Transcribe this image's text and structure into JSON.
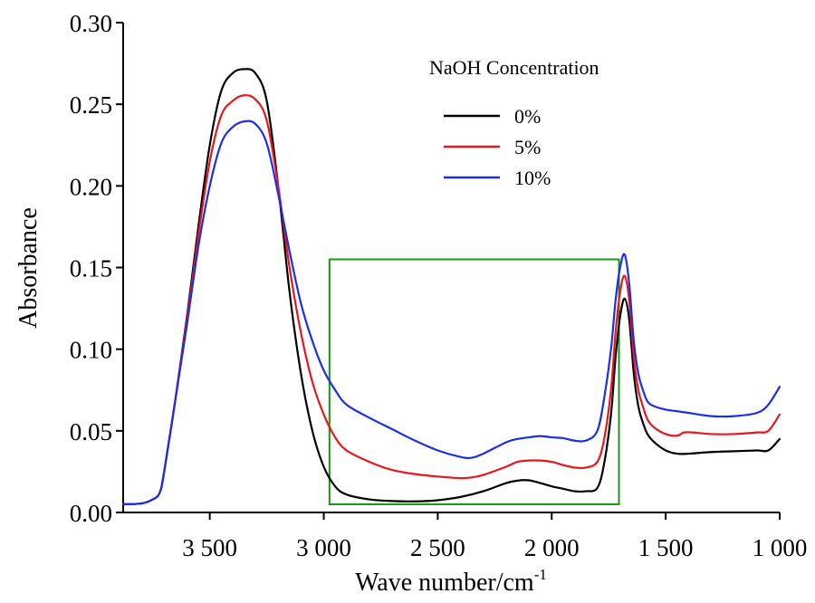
{
  "chart_data": {
    "type": "line",
    "xlabel": "Wave number/cm",
    "xlabel_sup": "-1",
    "ylabel": "Absorbance",
    "xlim": [
      3880,
      1000
    ],
    "ylim": [
      0,
      0.3
    ],
    "x_reversed": true,
    "x_ticks": [
      3500,
      3000,
      2500,
      2000,
      1500,
      1000
    ],
    "x_tick_labels": [
      "3 500",
      "3 000",
      "2 500",
      "2 000",
      "1 500",
      "1 000"
    ],
    "y_ticks": [
      0,
      0.05,
      0.1,
      0.15,
      0.2,
      0.25,
      0.3
    ],
    "y_tick_labels": [
      "0.00",
      "0.05",
      "0.10",
      "0.15",
      "0.20",
      "0.25",
      "0.30"
    ],
    "grid": false,
    "legend": {
      "title": "NaOH Concentration",
      "placement": "top-right"
    },
    "series": [
      {
        "name": "0%",
        "color": "#000000",
        "points": [
          [
            3880,
            0.005
          ],
          [
            3800,
            0.0055
          ],
          [
            3750,
            0.008
          ],
          [
            3720,
            0.012
          ],
          [
            3700,
            0.025
          ],
          [
            3650,
            0.07
          ],
          [
            3600,
            0.12
          ],
          [
            3550,
            0.175
          ],
          [
            3500,
            0.225
          ],
          [
            3450,
            0.258
          ],
          [
            3400,
            0.269
          ],
          [
            3350,
            0.2715
          ],
          [
            3300,
            0.269
          ],
          [
            3250,
            0.252
          ],
          [
            3200,
            0.2
          ],
          [
            3150,
            0.135
          ],
          [
            3100,
            0.085
          ],
          [
            3050,
            0.05
          ],
          [
            3000,
            0.028
          ],
          [
            2950,
            0.016
          ],
          [
            2900,
            0.011
          ],
          [
            2800,
            0.008
          ],
          [
            2700,
            0.007
          ],
          [
            2600,
            0.0068
          ],
          [
            2500,
            0.0075
          ],
          [
            2400,
            0.0095
          ],
          [
            2300,
            0.013
          ],
          [
            2200,
            0.018
          ],
          [
            2150,
            0.0195
          ],
          [
            2100,
            0.0197
          ],
          [
            2050,
            0.018
          ],
          [
            2000,
            0.016
          ],
          [
            1950,
            0.0145
          ],
          [
            1900,
            0.013
          ],
          [
            1850,
            0.013
          ],
          [
            1800,
            0.015
          ],
          [
            1770,
            0.03
          ],
          [
            1740,
            0.06
          ],
          [
            1720,
            0.095
          ],
          [
            1700,
            0.12
          ],
          [
            1680,
            0.131
          ],
          [
            1660,
            0.118
          ],
          [
            1640,
            0.085
          ],
          [
            1620,
            0.065
          ],
          [
            1600,
            0.055
          ],
          [
            1580,
            0.048
          ],
          [
            1550,
            0.043
          ],
          [
            1500,
            0.038
          ],
          [
            1450,
            0.036
          ],
          [
            1400,
            0.036
          ],
          [
            1300,
            0.037
          ],
          [
            1200,
            0.0375
          ],
          [
            1100,
            0.038
          ],
          [
            1050,
            0.038
          ],
          [
            1000,
            0.045
          ]
        ]
      },
      {
        "name": "5%",
        "color": "#e8171c",
        "points": [
          [
            3880,
            0.005
          ],
          [
            3800,
            0.0055
          ],
          [
            3750,
            0.008
          ],
          [
            3720,
            0.012
          ],
          [
            3700,
            0.025
          ],
          [
            3650,
            0.07
          ],
          [
            3600,
            0.118
          ],
          [
            3550,
            0.17
          ],
          [
            3500,
            0.215
          ],
          [
            3450,
            0.243
          ],
          [
            3400,
            0.252
          ],
          [
            3350,
            0.2555
          ],
          [
            3300,
            0.253
          ],
          [
            3250,
            0.24
          ],
          [
            3200,
            0.2
          ],
          [
            3150,
            0.15
          ],
          [
            3100,
            0.11
          ],
          [
            3050,
            0.08
          ],
          [
            3000,
            0.06
          ],
          [
            2950,
            0.046
          ],
          [
            2900,
            0.038
          ],
          [
            2800,
            0.031
          ],
          [
            2700,
            0.026
          ],
          [
            2600,
            0.0235
          ],
          [
            2500,
            0.022
          ],
          [
            2400,
            0.021
          ],
          [
            2350,
            0.0215
          ],
          [
            2300,
            0.023
          ],
          [
            2200,
            0.028
          ],
          [
            2150,
            0.031
          ],
          [
            2100,
            0.0318
          ],
          [
            2050,
            0.0318
          ],
          [
            2000,
            0.031
          ],
          [
            1950,
            0.029
          ],
          [
            1900,
            0.0275
          ],
          [
            1850,
            0.0275
          ],
          [
            1800,
            0.031
          ],
          [
            1770,
            0.045
          ],
          [
            1740,
            0.075
          ],
          [
            1720,
            0.11
          ],
          [
            1700,
            0.135
          ],
          [
            1680,
            0.145
          ],
          [
            1660,
            0.13
          ],
          [
            1640,
            0.095
          ],
          [
            1620,
            0.075
          ],
          [
            1600,
            0.065
          ],
          [
            1580,
            0.057
          ],
          [
            1550,
            0.052
          ],
          [
            1500,
            0.048
          ],
          [
            1450,
            0.047
          ],
          [
            1420,
            0.049
          ],
          [
            1380,
            0.049
          ],
          [
            1300,
            0.048
          ],
          [
            1200,
            0.048
          ],
          [
            1100,
            0.049
          ],
          [
            1050,
            0.05
          ],
          [
            1000,
            0.06
          ]
        ]
      },
      {
        "name": "10%",
        "color": "#1c2fe8",
        "points": [
          [
            3880,
            0.005
          ],
          [
            3800,
            0.0055
          ],
          [
            3750,
            0.008
          ],
          [
            3720,
            0.012
          ],
          [
            3700,
            0.025
          ],
          [
            3650,
            0.07
          ],
          [
            3600,
            0.115
          ],
          [
            3550,
            0.163
          ],
          [
            3500,
            0.2
          ],
          [
            3450,
            0.226
          ],
          [
            3400,
            0.236
          ],
          [
            3350,
            0.2395
          ],
          [
            3300,
            0.238
          ],
          [
            3250,
            0.226
          ],
          [
            3200,
            0.195
          ],
          [
            3150,
            0.16
          ],
          [
            3100,
            0.128
          ],
          [
            3050,
            0.105
          ],
          [
            3000,
            0.087
          ],
          [
            2950,
            0.075
          ],
          [
            2900,
            0.066
          ],
          [
            2800,
            0.058
          ],
          [
            2700,
            0.051
          ],
          [
            2600,
            0.044
          ],
          [
            2500,
            0.038
          ],
          [
            2400,
            0.034
          ],
          [
            2350,
            0.0335
          ],
          [
            2300,
            0.036
          ],
          [
            2200,
            0.043
          ],
          [
            2150,
            0.045
          ],
          [
            2100,
            0.046
          ],
          [
            2050,
            0.0468
          ],
          [
            2000,
            0.046
          ],
          [
            1950,
            0.0455
          ],
          [
            1900,
            0.044
          ],
          [
            1850,
            0.044
          ],
          [
            1800,
            0.05
          ],
          [
            1770,
            0.07
          ],
          [
            1740,
            0.1
          ],
          [
            1720,
            0.13
          ],
          [
            1700,
            0.15
          ],
          [
            1680,
            0.158
          ],
          [
            1660,
            0.14
          ],
          [
            1640,
            0.105
          ],
          [
            1620,
            0.085
          ],
          [
            1600,
            0.075
          ],
          [
            1580,
            0.068
          ],
          [
            1550,
            0.065
          ],
          [
            1500,
            0.063
          ],
          [
            1450,
            0.062
          ],
          [
            1400,
            0.061
          ],
          [
            1300,
            0.059
          ],
          [
            1200,
            0.059
          ],
          [
            1100,
            0.061
          ],
          [
            1050,
            0.066
          ],
          [
            1000,
            0.077
          ]
        ]
      }
    ],
    "highlight_box": {
      "x_start": 2975,
      "x_end": 1705,
      "y_bottom": 0.005,
      "y_top": 0.155,
      "color": "#169a16"
    }
  }
}
